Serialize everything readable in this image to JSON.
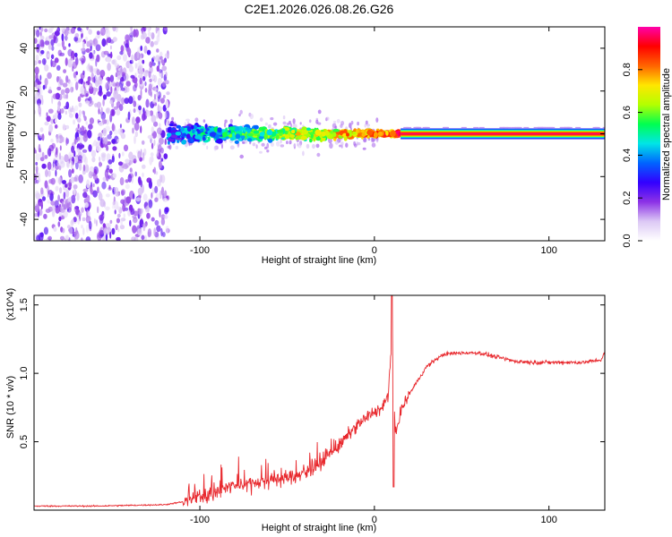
{
  "title": "C2E1.2026.026.08.26.G26",
  "chart_data": [
    {
      "type": "heatmap",
      "xlabel": "Height of straight line (km)",
      "ylabel": "Frequency (Hz)",
      "xlim": [
        -195,
        132
      ],
      "ylim": [
        -50,
        50
      ],
      "xticks": [
        -100,
        0,
        100
      ],
      "yticks": [
        -40,
        -20,
        0,
        20,
        40
      ],
      "colorbar": {
        "label": "Normalized spectral amplitude",
        "range": [
          0.0,
          1.0
        ],
        "ticks": [
          "0.0",
          "0.2",
          "0.4",
          "0.6",
          "0.8"
        ],
        "colormap": [
          "#ffffff",
          "#dcc8f5",
          "#8c32e6",
          "#3200ff",
          "#0064ff",
          "#00e6e6",
          "#00ff50",
          "#b4ff00",
          "#ffe600",
          "#ff6400",
          "#ff0000",
          "#ff00aa"
        ]
      },
      "regions": [
        {
          "name": "noise",
          "x": [
            -195,
            -118
          ],
          "freq_spread": 50,
          "amplitude": 0.1
        },
        {
          "name": "onset",
          "x": [
            -118,
            -20
          ],
          "freq_spread": 7,
          "amplitude": 0.35
        },
        {
          "name": "transition",
          "x": [
            -20,
            15
          ],
          "freq_spread": 3,
          "amplitude": 0.85
        },
        {
          "name": "steady",
          "x": [
            15,
            132
          ],
          "freq_spread": 1,
          "amplitude": 1.0
        }
      ]
    },
    {
      "type": "line",
      "xlabel": "Height of straight line (km)",
      "ylabel": "SNR (10 * v/v)",
      "multiplier": "(x10^4)",
      "xlim": [
        -195,
        132
      ],
      "ylim": [
        0,
        1.57
      ],
      "xticks": [
        -100,
        0,
        100
      ],
      "yticks": [
        "0.5",
        "1.0",
        "1.5"
      ],
      "color": "#e8282d",
      "series": [
        {
          "name": "SNR",
          "x": [
            -195,
            -180,
            -160,
            -140,
            -120,
            -110,
            -100,
            -90,
            -80,
            -70,
            -60,
            -50,
            -40,
            -35,
            -30,
            -25,
            -20,
            -15,
            -10,
            -5,
            0,
            5,
            8,
            10,
            12,
            15,
            20,
            25,
            30,
            35,
            40,
            50,
            60,
            70,
            80,
            90,
            100,
            110,
            120,
            125,
            130,
            132
          ],
          "values": [
            0.03,
            0.03,
            0.03,
            0.035,
            0.04,
            0.06,
            0.1,
            0.14,
            0.18,
            0.2,
            0.22,
            0.24,
            0.27,
            0.32,
            0.35,
            0.42,
            0.47,
            0.55,
            0.62,
            0.67,
            0.72,
            0.75,
            0.85,
            1.3,
            0.55,
            0.72,
            0.85,
            0.95,
            1.05,
            1.1,
            1.14,
            1.15,
            1.15,
            1.12,
            1.09,
            1.08,
            1.08,
            1.08,
            1.08,
            1.09,
            1.1,
            1.15
          ]
        }
      ]
    }
  ]
}
